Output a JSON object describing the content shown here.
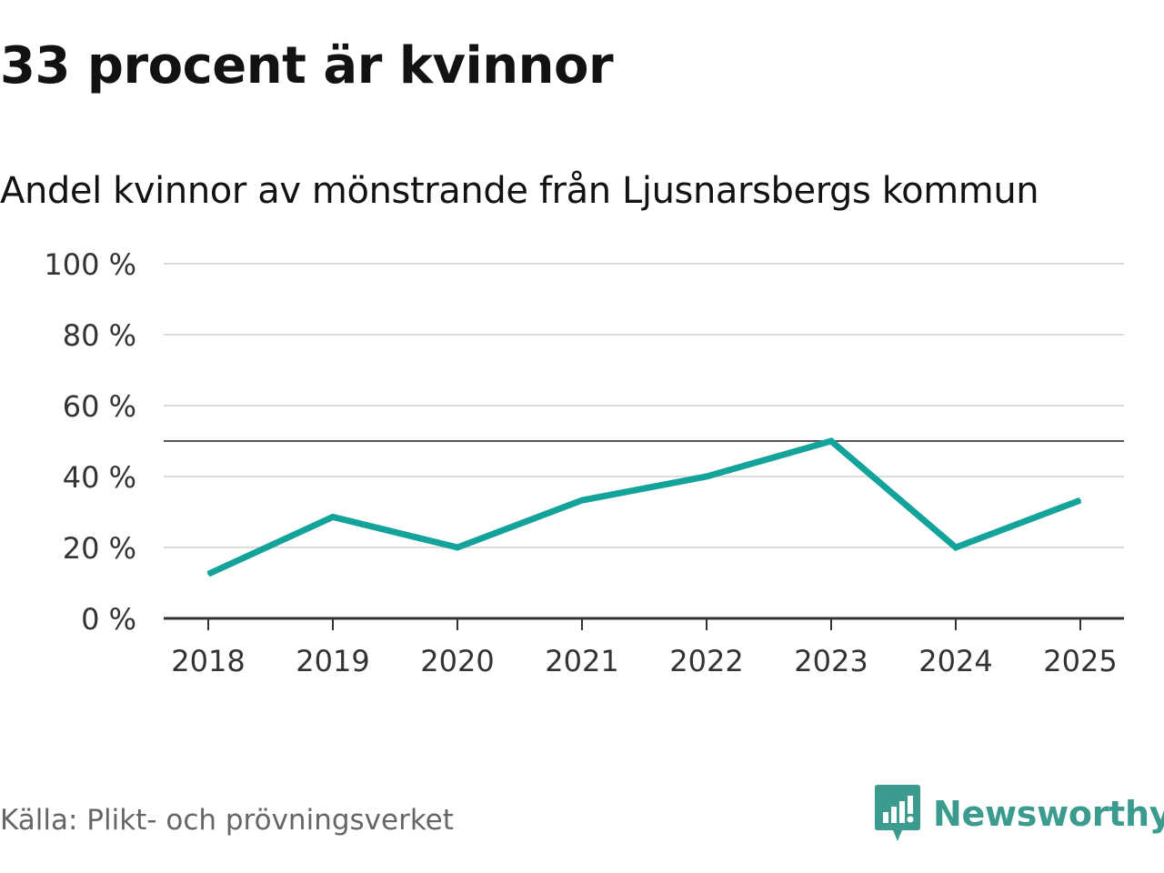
{
  "title": "33 procent är kvinnor",
  "subtitle": "Andel kvinnor av mönstrande från Ljusnarsbergs kommun",
  "source": "Källa: Plikt- och prövningsverket",
  "brand": {
    "name": "Newsworthy",
    "icon": "newsworthy-logo-icon"
  },
  "colors": {
    "line": "#14a39a",
    "reference": "#555555",
    "grid": "#dddddd",
    "axis": "#333333",
    "brand": "#3b9b8e"
  },
  "chart_data": {
    "type": "line",
    "title": "Andel kvinnor av mönstrande från Ljusnarsbergs kommun",
    "xlabel": "",
    "ylabel": "",
    "x": [
      "2018",
      "2019",
      "2020",
      "2021",
      "2022",
      "2023",
      "2024",
      "2025"
    ],
    "series": [
      {
        "name": "Andel kvinnor",
        "values": [
          12.5,
          28.6,
          20,
          33.3,
          40,
          50,
          20,
          33.3
        ]
      }
    ],
    "reference_line": 50,
    "ylim": [
      0,
      100
    ],
    "yticks": [
      0,
      20,
      40,
      60,
      80,
      100
    ],
    "ytick_labels": [
      "0 %",
      "20 %",
      "40 %",
      "60 %",
      "80 %",
      "100 %"
    ],
    "grid": true,
    "legend": "none"
  }
}
